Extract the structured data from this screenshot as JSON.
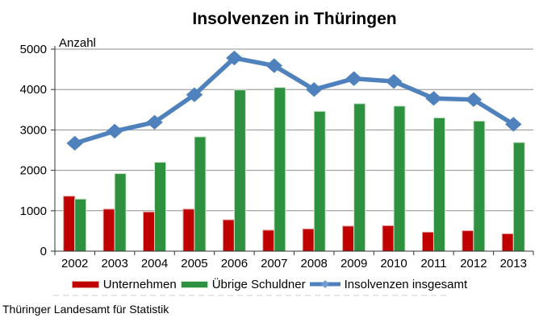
{
  "chart_data": {
    "type": "bar",
    "title": "Insolvenzen in Thüringen",
    "ylabel": "Anzahl",
    "xlabel": "",
    "categories": [
      "2002",
      "2003",
      "2004",
      "2005",
      "2006",
      "2007",
      "2008",
      "2009",
      "2010",
      "2011",
      "2012",
      "2013"
    ],
    "series": [
      {
        "name": "Unternehmen",
        "type": "bar",
        "color": "#c00000",
        "border_color": "#e49c9a",
        "values": [
          1360,
          1040,
          970,
          1040,
          775,
          520,
          550,
          620,
          630,
          470,
          505,
          430
        ]
      },
      {
        "name": "Übrige Schuldner",
        "type": "bar",
        "color": "#2e9140",
        "border_color": "#cde6cc",
        "values": [
          1290,
          1920,
          2200,
          2830,
          3990,
          4050,
          3460,
          3650,
          3590,
          3300,
          3220,
          2690
        ]
      },
      {
        "name": "Insolvenzen insgesamt",
        "type": "line",
        "color": "#4f81bd",
        "marker": "diamond",
        "marker_color": "#6f9bd1",
        "values": [
          2670,
          2970,
          3190,
          3870,
          4780,
          4590,
          4000,
          4270,
          4200,
          3780,
          3750,
          3140
        ]
      }
    ],
    "ylim": [
      0,
      5000
    ],
    "ytick_step": 1000,
    "yticks": [
      "0",
      "1000",
      "2000",
      "3000",
      "4000",
      "5000"
    ],
    "grid": "horizontal",
    "legend_position": "bottom"
  },
  "source": "Thüringer Landesamt für Statistik",
  "colors": {
    "background": "#ffffff",
    "grid": "#8e8e8e",
    "axis": "#333333",
    "text": "#000000"
  }
}
